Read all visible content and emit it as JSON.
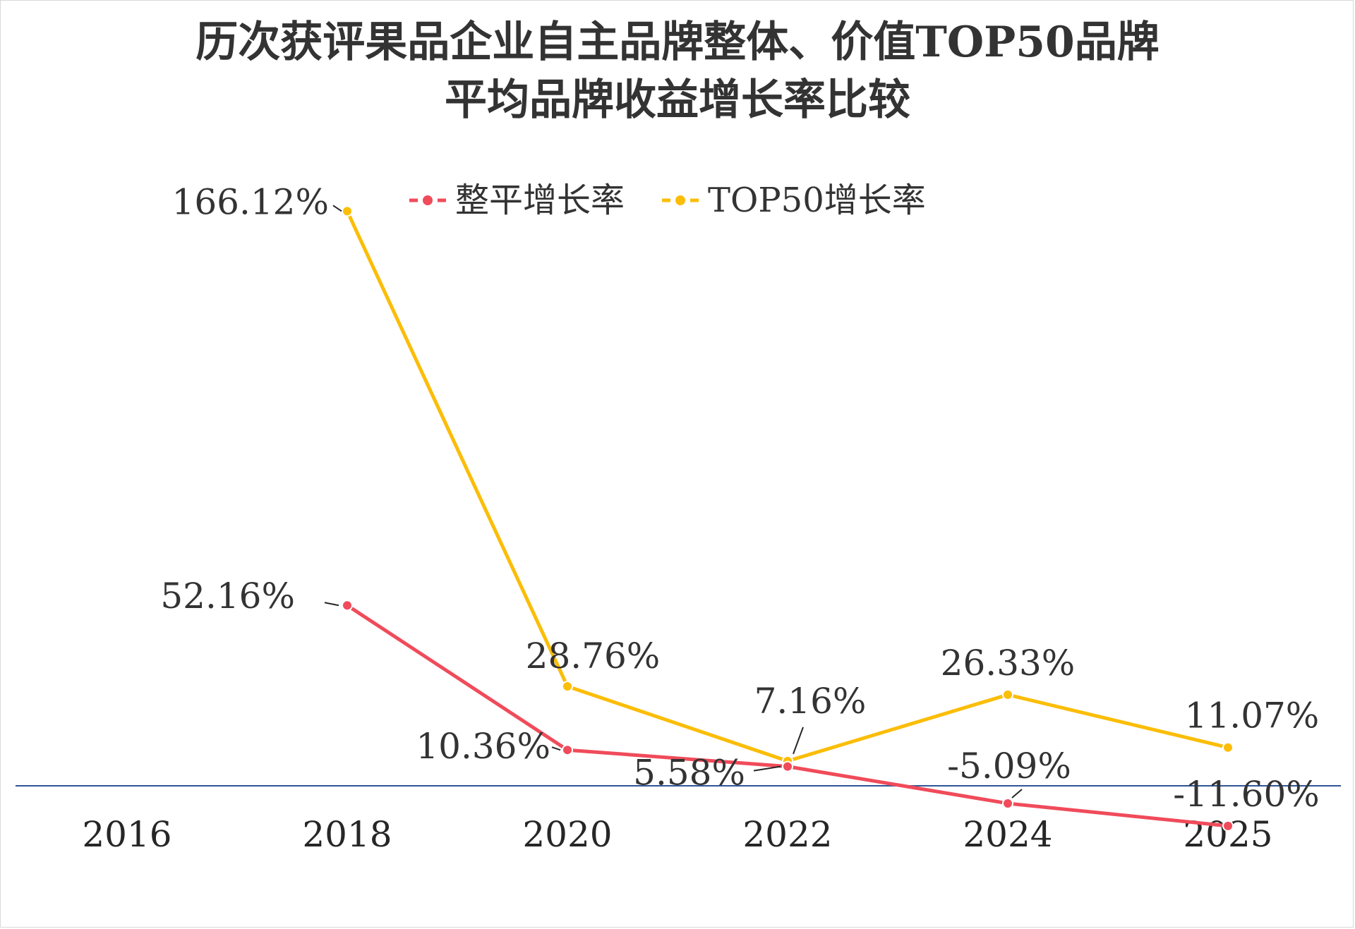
{
  "chart_data": {
    "type": "line",
    "title_line1": "历次获评果品企业自主品牌整体、价值TOP50品牌",
    "title_line2": "平均品牌收益增长率比较",
    "categories": [
      "2016",
      "2018",
      "2020",
      "2022",
      "2024",
      "2025"
    ],
    "series": [
      {
        "name": "整平增长率",
        "color": "#f04b5a",
        "values": [
          null,
          52.16,
          10.36,
          5.58,
          -5.09,
          -11.6
        ],
        "labels": [
          "",
          "52.16%",
          "10.36%",
          "5.58%",
          "-5.09%",
          "-11.60%"
        ]
      },
      {
        "name": "TOP50增长率",
        "color": "#fbbd07",
        "values": [
          null,
          166.12,
          28.76,
          7.16,
          26.33,
          11.07
        ],
        "labels": [
          "",
          "166.12%",
          "28.76%",
          "7.16%",
          "26.33%",
          "11.07%"
        ]
      }
    ],
    "axis_color": "#2f5597",
    "legend_position": "top",
    "grid": false,
    "y_axis_visible": false
  }
}
